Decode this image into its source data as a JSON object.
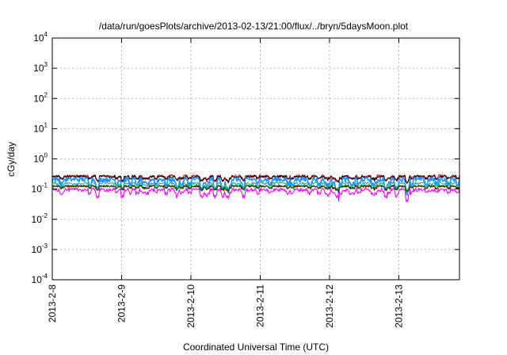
{
  "chart_data": {
    "type": "line",
    "title": "/data/run/goesPlots/archive/2013-02-13/21:00/flux/../bryn/5daysMoon.plot",
    "xlabel": "Coordinated Universal Time (UTC)",
    "ylabel": "cGy/day",
    "y_scale": "log",
    "ylim": [
      0.0001,
      10000
    ],
    "xlim": [
      "2013-02-08 00:00",
      "2013-02-13 21:00"
    ],
    "y_ticks": [
      {
        "base": "10",
        "exp": "4",
        "value": 10000
      },
      {
        "base": "10",
        "exp": "3",
        "value": 1000
      },
      {
        "base": "10",
        "exp": "2",
        "value": 100
      },
      {
        "base": "10",
        "exp": "1",
        "value": 10
      },
      {
        "base": "10",
        "exp": "0",
        "value": 1
      },
      {
        "base": "10",
        "exp": "-1",
        "value": 0.1
      },
      {
        "base": "10",
        "exp": "-2",
        "value": 0.01
      },
      {
        "base": "10",
        "exp": "-3",
        "value": 0.001
      },
      {
        "base": "10",
        "exp": "-4",
        "value": 0.0001
      }
    ],
    "x_ticks": [
      "2013-2-8",
      "2013-2-9",
      "2013-2-10",
      "2013-2-11",
      "2013-2-12",
      "2013-2-13"
    ],
    "grid": true,
    "series": [
      {
        "color": "#ff0000",
        "level": 0.27,
        "spread": 0.1
      },
      {
        "color": "#000000",
        "level": 0.26,
        "spread": 0.08
      },
      {
        "color": "#1e90ff",
        "level": 0.21,
        "spread": 0.18
      },
      {
        "color": "#20b2aa",
        "level": 0.155,
        "spread": 0.1
      },
      {
        "color": "#8b0000",
        "level": 0.125,
        "spread": 0.08
      },
      {
        "color": "#006400",
        "level": 0.125,
        "spread": 0.07
      },
      {
        "color": "#ff00ff",
        "level": 0.095,
        "spread": 0.14
      }
    ]
  }
}
